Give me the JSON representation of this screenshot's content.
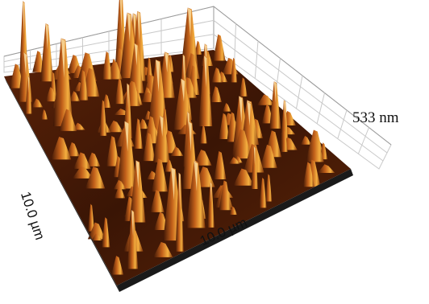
{
  "figure": {
    "z_label": "533 nm",
    "x_label": "10.0 µm",
    "y_label": "10.0 µm"
  },
  "colors": {
    "background": "#ffffff",
    "grid": "#c9c9c9",
    "surface_dark": "#2a0f04",
    "surface_mid": "#8a3a0c",
    "surface_bright": "#f0a030",
    "surface_highlight": "#ffe6a8",
    "base_edge": "#1a1a1a"
  }
}
